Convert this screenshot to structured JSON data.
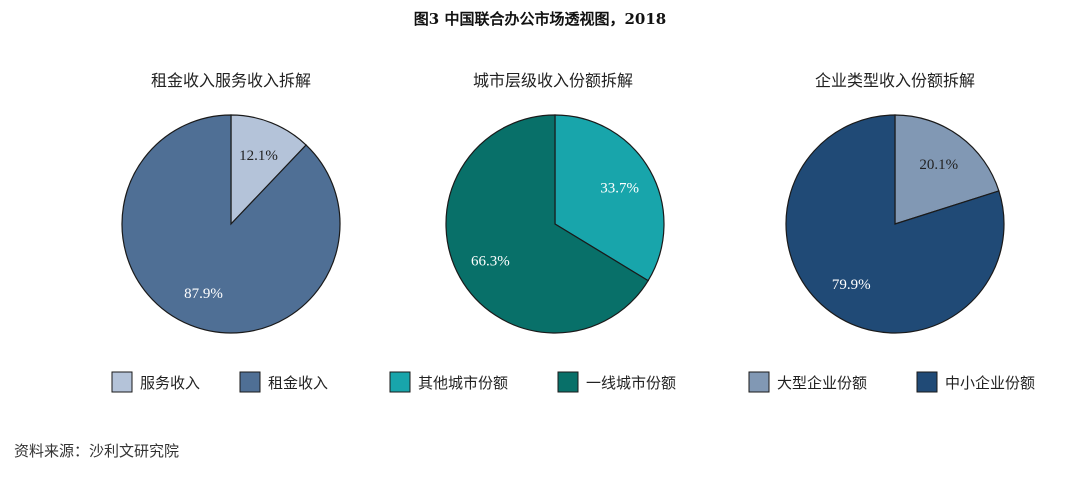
{
  "figure_title": "图3 中国联合办公市场透视图，2018",
  "source": "资料来源：沙利文研究院",
  "chart_data": [
    {
      "type": "pie",
      "title": "租金收入服务收入拆解",
      "slices": [
        {
          "name": "服务收入",
          "value": 12.1,
          "label": "12.1%",
          "color": "#b4c3d9",
          "label_color": "#222222"
        },
        {
          "name": "租金收入",
          "value": 87.9,
          "label": "87.9%",
          "color": "#4f6f95",
          "label_color": "#ffffff"
        }
      ]
    },
    {
      "type": "pie",
      "title": "城市层级收入份额拆解",
      "slices": [
        {
          "name": "其他城市份额",
          "value": 33.7,
          "label": "33.7%",
          "color": "#18a5ab",
          "label_color": "#ffffff"
        },
        {
          "name": "一线城市份额",
          "value": 66.3,
          "label": "66.3%",
          "color": "#087069",
          "label_color": "#ffffff"
        }
      ]
    },
    {
      "type": "pie",
      "title": "企业类型收入份额拆解",
      "slices": [
        {
          "name": "大型企业份额",
          "value": 20.1,
          "label": "20.1%",
          "color": "#8198b4",
          "label_color": "#222222"
        },
        {
          "name": "中小企业份额",
          "value": 79.9,
          "label": "79.9%",
          "color": "#204a76",
          "label_color": "#ffffff"
        }
      ]
    }
  ]
}
